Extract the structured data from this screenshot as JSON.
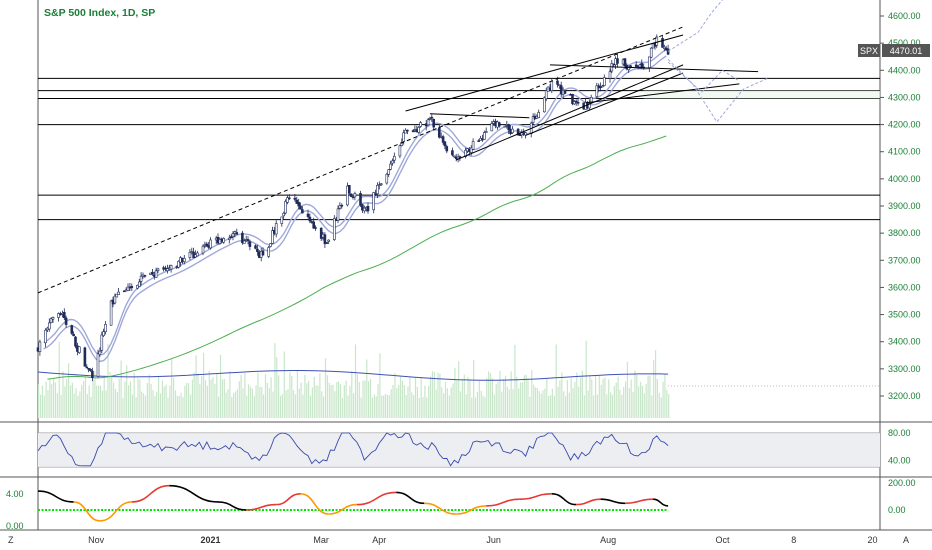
{
  "title": "S&P 500 Index, 1D, SP",
  "price_tag": {
    "symbol": "SPX",
    "value": "4470.01"
  },
  "colors": {
    "up": "#1e2a5a",
    "down": "#1e2a5a",
    "title": "#1a7f37",
    "ma_long": "#4caf50",
    "ma_band": "#9fa8da",
    "ma_cross": "#e57373",
    "volume": "#c8e6c9",
    "volume_ma": "#3f51b5",
    "rsi": "#3949ab",
    "osc_pos": "#e53935",
    "osc_neg": "#000000",
    "osc_zero": "#00e600",
    "forecast": "#9fa8da"
  },
  "bottom_bar": {
    "left_tag": "Z",
    "right_tag": "A"
  },
  "chart_data": [
    {
      "type": "candlestick",
      "name": "price",
      "ylim": [
        3150,
        4650
      ],
      "y_ticks": [
        "4600.00",
        "4500.00",
        "4400.00",
        "4300.00",
        "4200.00",
        "4100.00",
        "4000.00",
        "3900.00",
        "3800.00",
        "3700.00",
        "3600.00",
        "3500.00",
        "3400.00",
        "3300.00",
        "3200.00"
      ],
      "x_ticks": [
        "Nov",
        "2021",
        "Mar",
        "Apr",
        "Jun",
        "Aug",
        "Oct",
        "8",
        "20"
      ],
      "x_tick_dates": [
        "2020-11-01",
        "2021-01-01",
        "2021-03-01",
        "2021-04-01",
        "2021-06-01",
        "2021-08-01",
        "2021-10-01",
        "2021-11-08",
        "2021-12-20"
      ],
      "close_path": [
        [
          "2020-10-01",
          3380
        ],
        [
          "2020-10-12",
          3520
        ],
        [
          "2020-10-30",
          3270
        ],
        [
          "2020-11-09",
          3550
        ],
        [
          "2020-11-25",
          3630
        ],
        [
          "2020-12-10",
          3670
        ],
        [
          "2020-12-31",
          3756
        ],
        [
          "2021-01-14",
          3800
        ],
        [
          "2021-01-29",
          3714
        ],
        [
          "2021-02-12",
          3935
        ],
        [
          "2021-03-04",
          3768
        ],
        [
          "2021-03-15",
          3968
        ],
        [
          "2021-03-25",
          3880
        ],
        [
          "2021-04-15",
          4170
        ],
        [
          "2021-04-29",
          4210
        ],
        [
          "2021-05-12",
          4063
        ],
        [
          "2021-06-01",
          4200
        ],
        [
          "2021-06-18",
          4166
        ],
        [
          "2021-07-02",
          4352
        ],
        [
          "2021-07-19",
          4258
        ],
        [
          "2021-08-05",
          4429
        ],
        [
          "2021-08-19",
          4405
        ],
        [
          "2021-08-27",
          4509
        ],
        [
          "2021-09-02",
          4470
        ]
      ],
      "horizontal_levels": [
        4370,
        4325,
        4296,
        4200,
        3940,
        3850
      ],
      "trend_lines": [
        {
          "from": [
            "2020-10-01",
            3580
          ],
          "to": [
            "2021-09-10",
            4560
          ],
          "style": "dashed"
        },
        {
          "from": [
            "2021-04-15",
            4250
          ],
          "to": [
            "2021-09-10",
            4530
          ],
          "style": "solid"
        },
        {
          "from": [
            "2021-05-12",
            4070
          ],
          "to": [
            "2021-09-10",
            4420
          ],
          "style": "solid"
        },
        {
          "from": [
            "2021-06-18",
            4160
          ],
          "to": [
            "2021-09-10",
            4390
          ],
          "style": "solid"
        },
        {
          "from": [
            "2021-07-01",
            4420
          ],
          "to": [
            "2021-10-20",
            4395
          ],
          "style": "solid"
        },
        {
          "from": [
            "2021-07-20",
            4280
          ],
          "to": [
            "2021-10-10",
            4350
          ],
          "style": "solid"
        },
        {
          "from": [
            "2021-04-28",
            4240
          ],
          "to": [
            "2021-06-20",
            4225
          ],
          "style": "solid"
        }
      ],
      "forecast_paths": [
        [
          [
            "2021-09-02",
            4470
          ],
          [
            "2021-09-18",
            4540
          ],
          [
            "2021-09-25",
            4610
          ],
          [
            "2021-10-01",
            4660
          ]
        ],
        [
          [
            "2021-09-02",
            4440
          ],
          [
            "2021-09-15",
            4350
          ],
          [
            "2021-09-28",
            4210
          ],
          [
            "2021-10-12",
            4330
          ],
          [
            "2021-10-25",
            4370
          ]
        ],
        [
          [
            "2021-09-02",
            4430
          ],
          [
            "2021-09-20",
            4320
          ],
          [
            "2021-10-01",
            4400
          ],
          [
            "2021-10-10",
            4360
          ]
        ]
      ]
    },
    {
      "type": "bar",
      "name": "volume",
      "note": "volume histogram with moving average, no axis labels"
    },
    {
      "type": "line",
      "name": "rsi",
      "ylim": [
        20,
        90
      ],
      "y_ticks": [
        "80.00",
        "40.00"
      ],
      "band": [
        30,
        80
      ]
    },
    {
      "type": "line",
      "name": "oscillator",
      "left_ticks": [
        "4.00",
        "0.00"
      ],
      "right_ticks": [
        "200.00",
        "0.00"
      ],
      "ylim": [
        -120,
        260
      ],
      "peaks": [
        [
          "2020-10-01",
          140
        ],
        [
          "2020-10-20",
          60
        ],
        [
          "2020-11-03",
          -80
        ],
        [
          "2020-11-20",
          60
        ],
        [
          "2020-12-10",
          180
        ],
        [
          "2021-01-05",
          60
        ],
        [
          "2021-01-20",
          0
        ],
        [
          "2021-02-05",
          40
        ],
        [
          "2021-02-18",
          120
        ],
        [
          "2021-03-05",
          -30
        ],
        [
          "2021-03-20",
          40
        ],
        [
          "2021-04-10",
          130
        ],
        [
          "2021-04-25",
          50
        ],
        [
          "2021-05-12",
          -30
        ],
        [
          "2021-05-28",
          30
        ],
        [
          "2021-06-15",
          80
        ],
        [
          "2021-07-02",
          120
        ],
        [
          "2021-07-15",
          40
        ],
        [
          "2021-07-28",
          80
        ],
        [
          "2021-08-10",
          50
        ],
        [
          "2021-08-25",
          80
        ],
        [
          "2021-09-02",
          30
        ]
      ]
    }
  ]
}
